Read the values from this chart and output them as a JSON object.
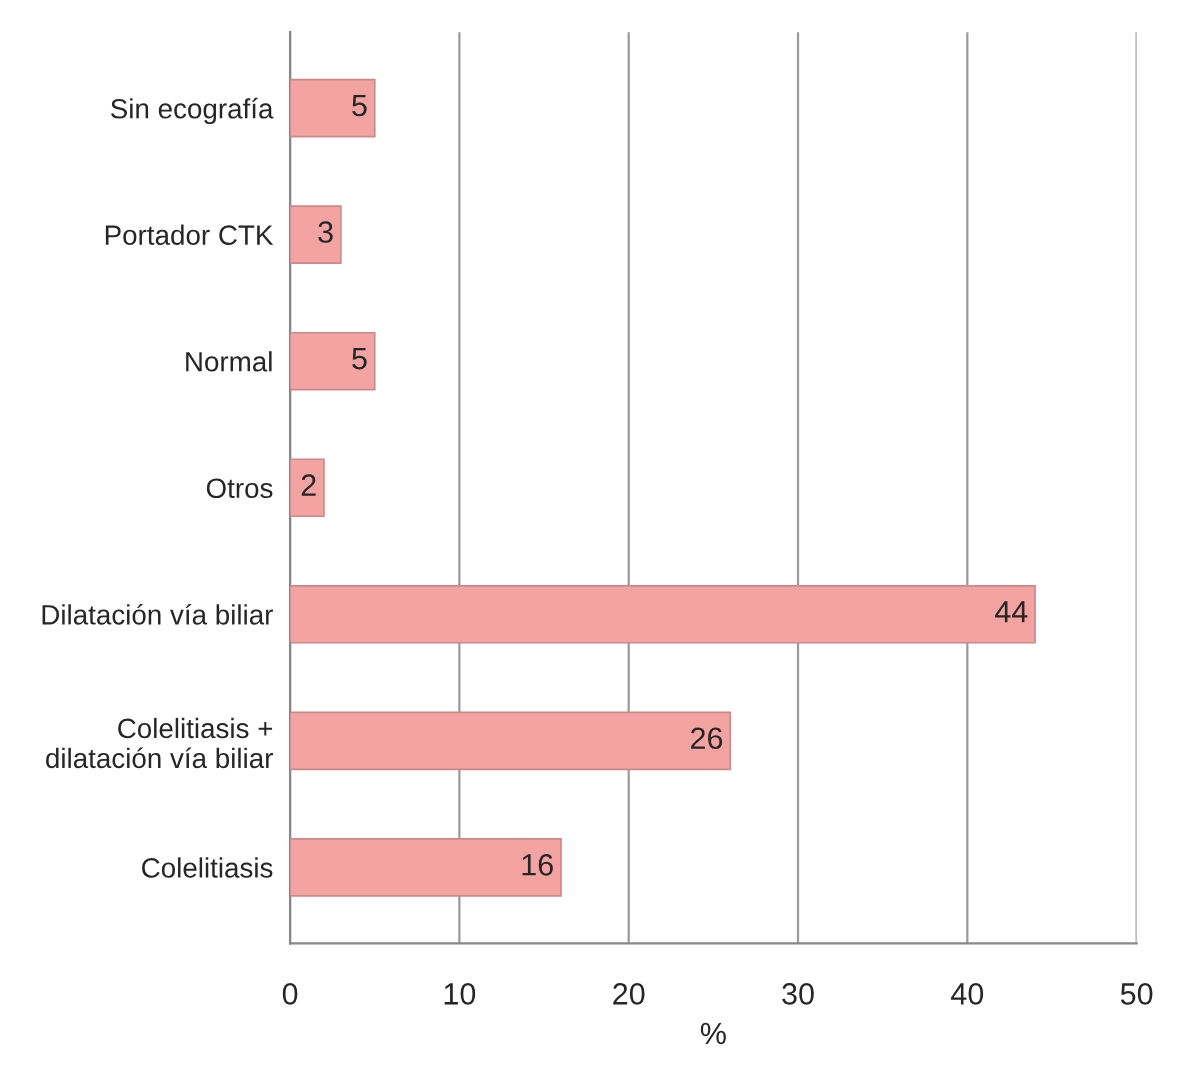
{
  "chart_data": {
    "type": "bar",
    "orientation": "horizontal",
    "xlabel": "%",
    "categories": [
      "Sin ecografía",
      "Portador CTK",
      "Normal",
      "Otros",
      "Dilatación vía biliar",
      "Colelitiasis +\ndilatación vía biliar",
      "Colelitiasis"
    ],
    "values": [
      5,
      3,
      5,
      2,
      44,
      26,
      16
    ],
    "color": "#f4a3a3",
    "data_labels": true,
    "xlim": [
      0,
      50
    ],
    "xticks": [
      0,
      10,
      20,
      30,
      40,
      50
    ],
    "grid": "x"
  }
}
